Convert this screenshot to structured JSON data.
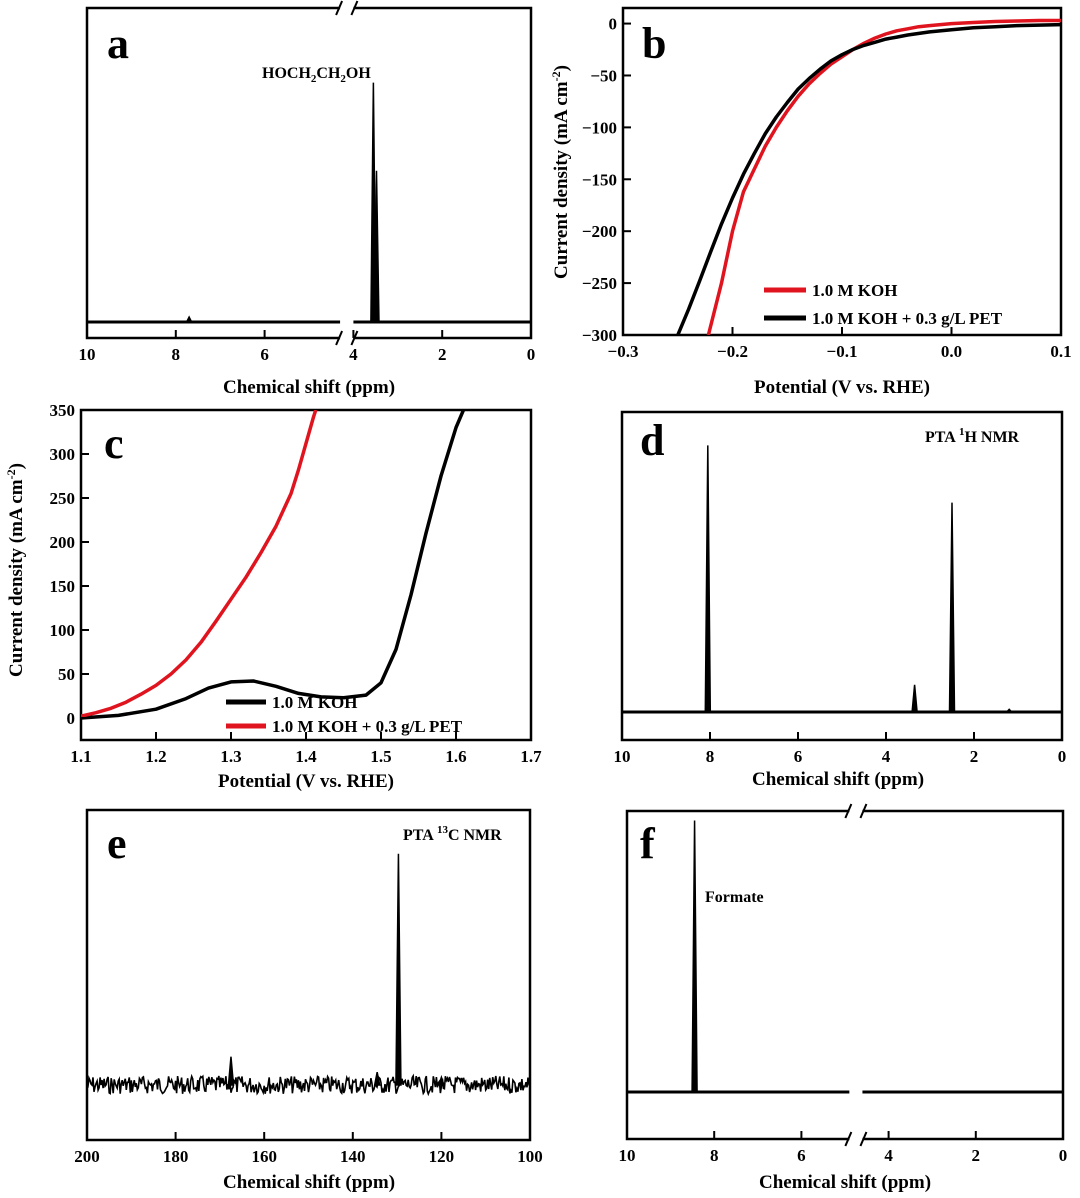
{
  "colors": {
    "black": "#000000",
    "red": "#e0141e"
  },
  "chart_data": [
    {
      "id": "a",
      "type": "line",
      "panel_label": "a",
      "xlabel": "Chemical shift (ppm)",
      "ylabel": "",
      "xlim": [
        10,
        0
      ],
      "x_reversed": true,
      "axis_break": [
        4.3,
        4.0
      ],
      "xticks": [
        "10",
        "8",
        "6",
        "4",
        "2",
        "0"
      ],
      "annotations": [
        "HOCH2CH2OH"
      ],
      "series": [
        {
          "color": "#000000",
          "peaks": [
            {
              "x": 7.7,
              "h": 0.02
            },
            {
              "x": 3.55,
              "h": 0.95
            },
            {
              "x": 3.48,
              "h": 0.6
            }
          ]
        }
      ]
    },
    {
      "id": "b",
      "type": "line",
      "panel_label": "b",
      "xlabel": "Potential (V vs. RHE)",
      "ylabel": "Current density (mA cm-2)",
      "xlim": [
        -0.3,
        0.1
      ],
      "ylim": [
        -300,
        15
      ],
      "xticks": [
        "-0.3",
        "-0.2",
        "-0.1",
        "0.0",
        "0.1"
      ],
      "yticks": [
        "0",
        "-50",
        "-100",
        "-150",
        "-200",
        "-250",
        "-300"
      ],
      "legend": "lower-right",
      "series": [
        {
          "name": "1.0 M KOH",
          "color": "#e0141e",
          "x": [
            -0.222,
            -0.21,
            -0.2,
            -0.19,
            -0.18,
            -0.17,
            -0.16,
            -0.15,
            -0.14,
            -0.13,
            -0.12,
            -0.11,
            -0.1,
            -0.09,
            -0.08,
            -0.07,
            -0.06,
            -0.05,
            -0.04,
            -0.03,
            -0.02,
            -0.01,
            0.0,
            0.02,
            0.04,
            0.06,
            0.08,
            0.1
          ],
          "y": [
            -300,
            -250,
            -200,
            -162,
            -140,
            -118,
            -100,
            -84,
            -70,
            -58,
            -48,
            -39,
            -32,
            -25,
            -19,
            -14,
            -10,
            -7,
            -5,
            -3,
            -2,
            -1,
            0,
            1,
            2,
            2.5,
            3,
            3
          ]
        },
        {
          "name": "1.0 M KOH + 0.3 g/L PET",
          "color": "#000000",
          "x": [
            -0.25,
            -0.24,
            -0.23,
            -0.22,
            -0.21,
            -0.2,
            -0.19,
            -0.18,
            -0.17,
            -0.16,
            -0.15,
            -0.14,
            -0.13,
            -0.12,
            -0.11,
            -0.1,
            -0.09,
            -0.08,
            -0.07,
            -0.06,
            -0.05,
            -0.04,
            -0.02,
            0.0,
            0.02,
            0.04,
            0.06,
            0.08,
            0.1
          ],
          "y": [
            -300,
            -275,
            -248,
            -220,
            -193,
            -168,
            -145,
            -125,
            -106,
            -90,
            -76,
            -63,
            -53,
            -44,
            -36,
            -30,
            -25,
            -21,
            -18,
            -15,
            -13,
            -11,
            -8,
            -6,
            -4,
            -3,
            -2,
            -1.5,
            -1
          ]
        }
      ]
    },
    {
      "id": "c",
      "type": "line",
      "panel_label": "c",
      "xlabel": "Potential (V vs. RHE)",
      "ylabel": "Current density (mA cm-2)",
      "xlim": [
        1.1,
        1.7
      ],
      "ylim": [
        -25,
        350
      ],
      "xticks": [
        "1.1",
        "1.2",
        "1.3",
        "1.4",
        "1.5",
        "1.6",
        "1.7"
      ],
      "yticks": [
        "0",
        "50",
        "100",
        "150",
        "200",
        "250",
        "300",
        "350"
      ],
      "legend": "lower-right",
      "series": [
        {
          "name": "1.0 M KOH",
          "color": "#000000",
          "x": [
            1.1,
            1.15,
            1.2,
            1.24,
            1.27,
            1.3,
            1.33,
            1.36,
            1.39,
            1.42,
            1.45,
            1.48,
            1.5,
            1.52,
            1.54,
            1.56,
            1.58,
            1.6,
            1.61
          ],
          "y": [
            0,
            3,
            10,
            22,
            34,
            41,
            42,
            36,
            28,
            24,
            23,
            26,
            40,
            78,
            140,
            210,
            275,
            330,
            350
          ]
        },
        {
          "name": "1.0 M KOH + 0.3 g/L PET",
          "color": "#e0141e",
          "x": [
            1.1,
            1.12,
            1.14,
            1.16,
            1.18,
            1.2,
            1.22,
            1.24,
            1.26,
            1.28,
            1.3,
            1.32,
            1.34,
            1.36,
            1.38,
            1.39,
            1.4,
            1.41,
            1.413
          ],
          "y": [
            2,
            6,
            11,
            18,
            27,
            37,
            50,
            66,
            86,
            110,
            135,
            160,
            188,
            218,
            255,
            282,
            312,
            342,
            350
          ]
        }
      ]
    },
    {
      "id": "d",
      "type": "line",
      "panel_label": "d",
      "xlabel": "Chemical shift (ppm)",
      "ylabel": "",
      "xlim": [
        10,
        0
      ],
      "x_reversed": true,
      "xticks": [
        "10",
        "8",
        "6",
        "4",
        "2",
        "0"
      ],
      "annotations": [
        "PTA 1H NMR"
      ],
      "series": [
        {
          "color": "#000000",
          "peaks": [
            {
              "x": 8.05,
              "h": 0.98
            },
            {
              "x": 3.35,
              "h": 0.1
            },
            {
              "x": 2.5,
              "h": 0.77
            },
            {
              "x": 1.2,
              "h": 0.01
            }
          ]
        }
      ]
    },
    {
      "id": "e",
      "type": "line",
      "panel_label": "e",
      "xlabel": "Chemical shift (ppm)",
      "ylabel": "",
      "xlim": [
        200,
        100
      ],
      "x_reversed": true,
      "xticks": [
        "200",
        "180",
        "160",
        "140",
        "120",
        "100"
      ],
      "annotations": [
        "PTA 13C NMR"
      ],
      "series": [
        {
          "color": "#000000",
          "noisy": true,
          "peaks": [
            {
              "x": 167.5,
              "h": 0.11
            },
            {
              "x": 134.5,
              "h": 0.05
            },
            {
              "x": 129.7,
              "h": 0.9
            },
            {
              "x": 120,
              "h": 0.03
            }
          ]
        }
      ]
    },
    {
      "id": "f",
      "type": "line",
      "panel_label": "f",
      "xlabel": "Chemical shift (ppm)",
      "ylabel": "",
      "xlim": [
        10,
        0
      ],
      "x_reversed": true,
      "axis_break": [
        4.9,
        4.6
      ],
      "xticks": [
        "10",
        "8",
        "6",
        "4",
        "2",
        "0"
      ],
      "annotations": [
        "Formate"
      ],
      "series": [
        {
          "color": "#000000",
          "peaks": [
            {
              "x": 8.45,
              "h": 0.98
            }
          ]
        }
      ]
    }
  ]
}
